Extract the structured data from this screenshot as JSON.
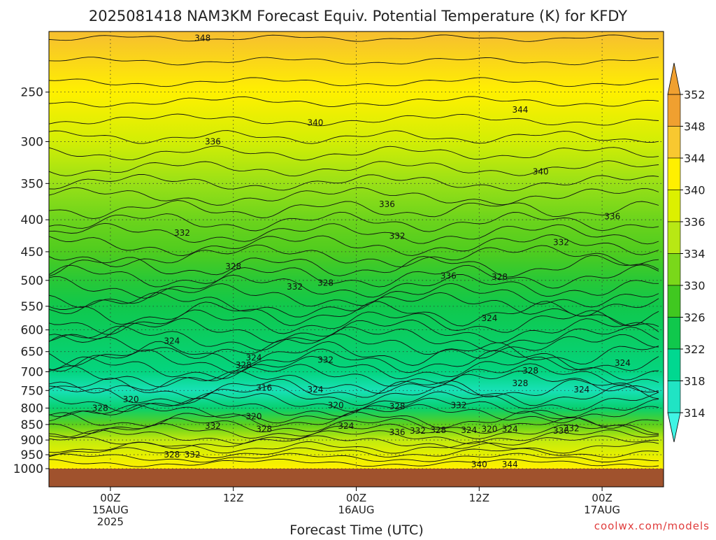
{
  "chart_data": {
    "type": "heatmap",
    "title": "2025081418 NAM3KM Forecast Equiv. Potential Temperature (K) for KFDY",
    "xlabel": "Forecast Time (UTC)",
    "credit": "coolwx.com/models",
    "x_ticks": [
      {
        "hours": 6,
        "lines": [
          "00Z",
          "15AUG",
          "2025"
        ]
      },
      {
        "hours": 18,
        "lines": [
          "12Z"
        ]
      },
      {
        "hours": 30,
        "lines": [
          "00Z",
          "16AUG"
        ]
      },
      {
        "hours": 42,
        "lines": [
          "12Z"
        ]
      },
      {
        "hours": 54,
        "lines": [
          "00Z",
          "17AUG"
        ]
      }
    ],
    "xlim_hours": [
      0,
      60
    ],
    "y_ticks": [
      250,
      300,
      350,
      400,
      450,
      500,
      550,
      600,
      650,
      700,
      750,
      800,
      850,
      900,
      950,
      1000
    ],
    "ylim": [
      200,
      1000
    ],
    "y_scale": "log-pressure",
    "grid": true,
    "colorbar": {
      "labels": [
        352,
        348,
        344,
        340,
        336,
        334,
        330,
        326,
        322,
        318,
        314
      ],
      "colors": [
        "#f0a030",
        "#f8c830",
        "#fff000",
        "#dcf000",
        "#b8e814",
        "#7ad81a",
        "#40c820",
        "#10c84c",
        "#00d890",
        "#20e4c4",
        "#40f4e4"
      ]
    },
    "profile": [
      {
        "p": 200,
        "theta_e": 349
      },
      {
        "p": 250,
        "theta_e": 344
      },
      {
        "p": 300,
        "theta_e": 339
      },
      {
        "p": 350,
        "theta_e": 335
      },
      {
        "p": 400,
        "theta_e": 333
      },
      {
        "p": 450,
        "theta_e": 331
      },
      {
        "p": 500,
        "theta_e": 328
      },
      {
        "p": 550,
        "theta_e": 326
      },
      {
        "p": 600,
        "theta_e": 325
      },
      {
        "p": 650,
        "theta_e": 324
      },
      {
        "p": 700,
        "theta_e": 323
      },
      {
        "p": 750,
        "theta_e": 319
      },
      {
        "p": 800,
        "theta_e": 324
      },
      {
        "p": 850,
        "theta_e": 332
      },
      {
        "p": 900,
        "theta_e": 337
      },
      {
        "p": 950,
        "theta_e": 341
      },
      {
        "p": 1000,
        "theta_e": 344
      }
    ],
    "contour_labels": [
      {
        "text": "348",
        "hours": 15,
        "p": 205
      },
      {
        "text": "344",
        "hours": 46,
        "p": 267
      },
      {
        "text": "340",
        "hours": 26,
        "p": 280
      },
      {
        "text": "340",
        "hours": 48,
        "p": 335
      },
      {
        "text": "336",
        "hours": 16,
        "p": 300
      },
      {
        "text": "336",
        "hours": 33,
        "p": 378
      },
      {
        "text": "336",
        "hours": 55,
        "p": 395
      },
      {
        "text": "332",
        "hours": 13,
        "p": 420
      },
      {
        "text": "332",
        "hours": 34,
        "p": 425
      },
      {
        "text": "332",
        "hours": 50,
        "p": 435
      },
      {
        "text": "328",
        "hours": 18,
        "p": 475
      },
      {
        "text": "328",
        "hours": 27,
        "p": 505
      },
      {
        "text": "328",
        "hours": 44,
        "p": 494
      },
      {
        "text": "332",
        "hours": 24,
        "p": 512
      },
      {
        "text": "336",
        "hours": 39,
        "p": 492
      },
      {
        "text": "324",
        "hours": 12,
        "p": 625
      },
      {
        "text": "324",
        "hours": 43,
        "p": 575
      },
      {
        "text": "324",
        "hours": 20,
        "p": 665
      },
      {
        "text": "328",
        "hours": 19,
        "p": 683
      },
      {
        "text": "332",
        "hours": 27,
        "p": 670
      },
      {
        "text": "328",
        "hours": 47,
        "p": 697
      },
      {
        "text": "324",
        "hours": 56,
        "p": 678
      },
      {
        "text": "328",
        "hours": 46,
        "p": 730
      },
      {
        "text": "324",
        "hours": 26,
        "p": 748
      },
      {
        "text": "316",
        "hours": 21,
        "p": 743
      },
      {
        "text": "324",
        "hours": 52,
        "p": 748
      },
      {
        "text": "320",
        "hours": 8,
        "p": 775
      },
      {
        "text": "320",
        "hours": 28,
        "p": 792
      },
      {
        "text": "328",
        "hours": 34,
        "p": 795
      },
      {
        "text": "332",
        "hours": 40,
        "p": 792
      },
      {
        "text": "328",
        "hours": 5,
        "p": 800
      },
      {
        "text": "320",
        "hours": 20,
        "p": 825
      },
      {
        "text": "332",
        "hours": 16,
        "p": 855
      },
      {
        "text": "328",
        "hours": 21,
        "p": 865
      },
      {
        "text": "324",
        "hours": 29,
        "p": 855
      },
      {
        "text": "336",
        "hours": 34,
        "p": 875
      },
      {
        "text": "332",
        "hours": 36,
        "p": 870
      },
      {
        "text": "328",
        "hours": 38,
        "p": 868
      },
      {
        "text": "324",
        "hours": 41,
        "p": 868
      },
      {
        "text": "320",
        "hours": 43,
        "p": 865
      },
      {
        "text": "324",
        "hours": 45,
        "p": 865
      },
      {
        "text": "336",
        "hours": 50,
        "p": 870
      },
      {
        "text": "332",
        "hours": 51,
        "p": 862
      },
      {
        "text": "328",
        "hours": 12,
        "p": 950
      },
      {
        "text": "332",
        "hours": 14,
        "p": 950
      },
      {
        "text": "340",
        "hours": 42,
        "p": 985
      },
      {
        "text": "344",
        "hours": 45,
        "p": 985
      }
    ]
  }
}
